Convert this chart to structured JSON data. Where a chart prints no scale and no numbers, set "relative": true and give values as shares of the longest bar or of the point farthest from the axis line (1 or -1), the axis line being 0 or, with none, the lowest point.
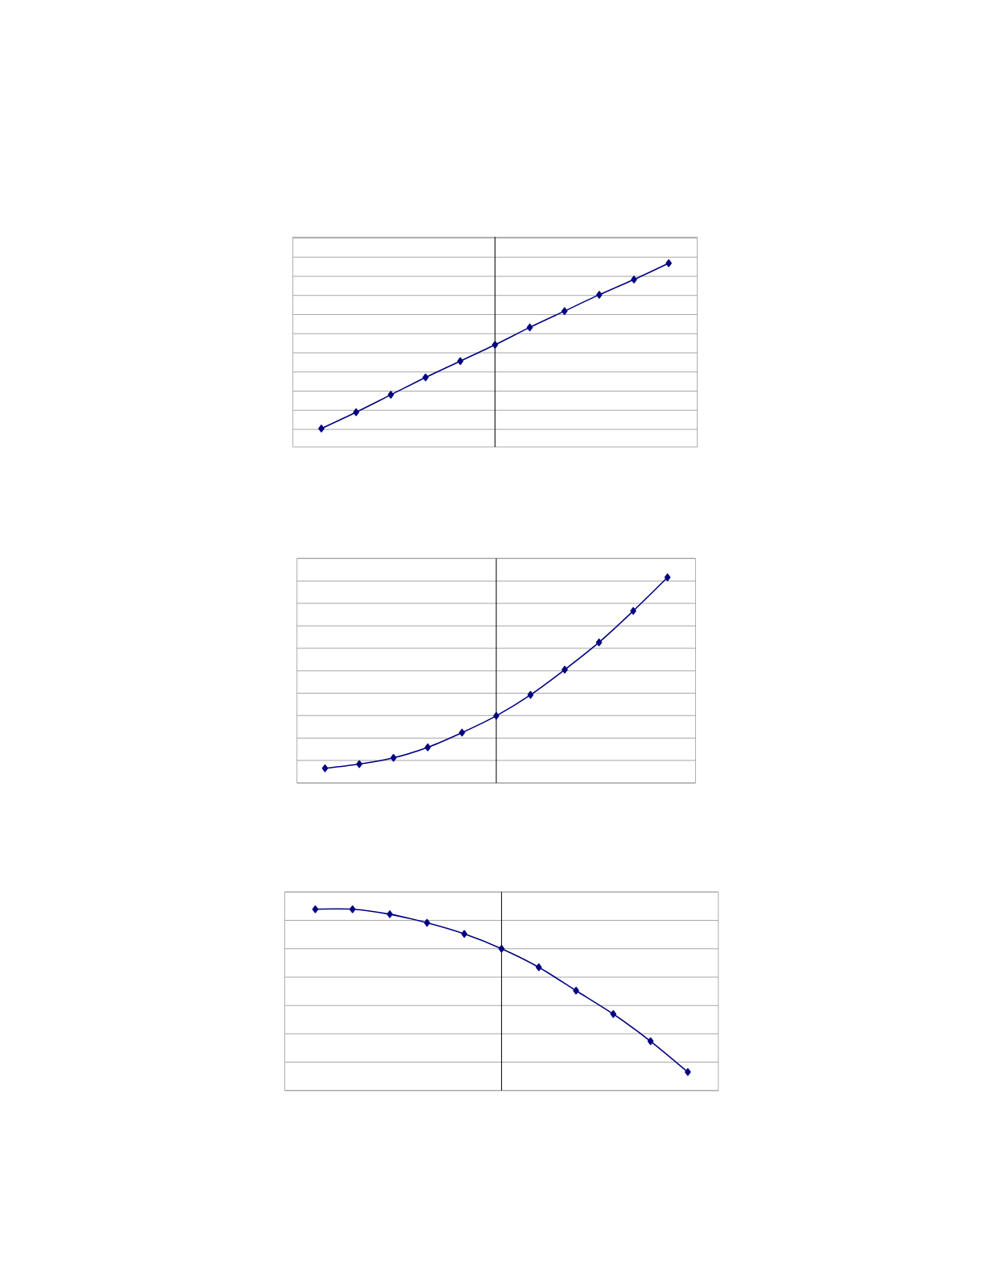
{
  "chart_data": [
    {
      "type": "line",
      "relative": true,
      "grid": "y",
      "marker": "diamond",
      "color": "#000080",
      "categories": [
        null,
        null,
        null,
        null,
        null,
        null,
        null,
        null,
        null,
        null,
        null
      ],
      "values": [
        -0.52,
        -0.37,
        -0.21,
        -0.05,
        0.1,
        0.25,
        0.41,
        0.56,
        0.71,
        0.85,
        1
      ]
    },
    {
      "type": "line",
      "relative": true,
      "grid": "y",
      "marker": "diamond",
      "color": "#000080",
      "categories": [
        null,
        null,
        null,
        null,
        null,
        null,
        null,
        null,
        null,
        null,
        null
      ],
      "values": [
        -1,
        -0.98,
        -0.95,
        -0.9,
        -0.83,
        -0.75,
        -0.65,
        -0.53,
        -0.4,
        -0.25,
        -0.09
      ]
    },
    {
      "type": "line",
      "relative": true,
      "grid": "y",
      "marker": "diamond",
      "color": "#000080",
      "categories": [
        null,
        null,
        null,
        null,
        null,
        null,
        null,
        null,
        null,
        null,
        null
      ],
      "values": [
        0.32,
        0.32,
        0.28,
        0.21,
        0.12,
        0,
        -0.15,
        -0.34,
        -0.53,
        -0.75,
        -1
      ]
    }
  ]
}
